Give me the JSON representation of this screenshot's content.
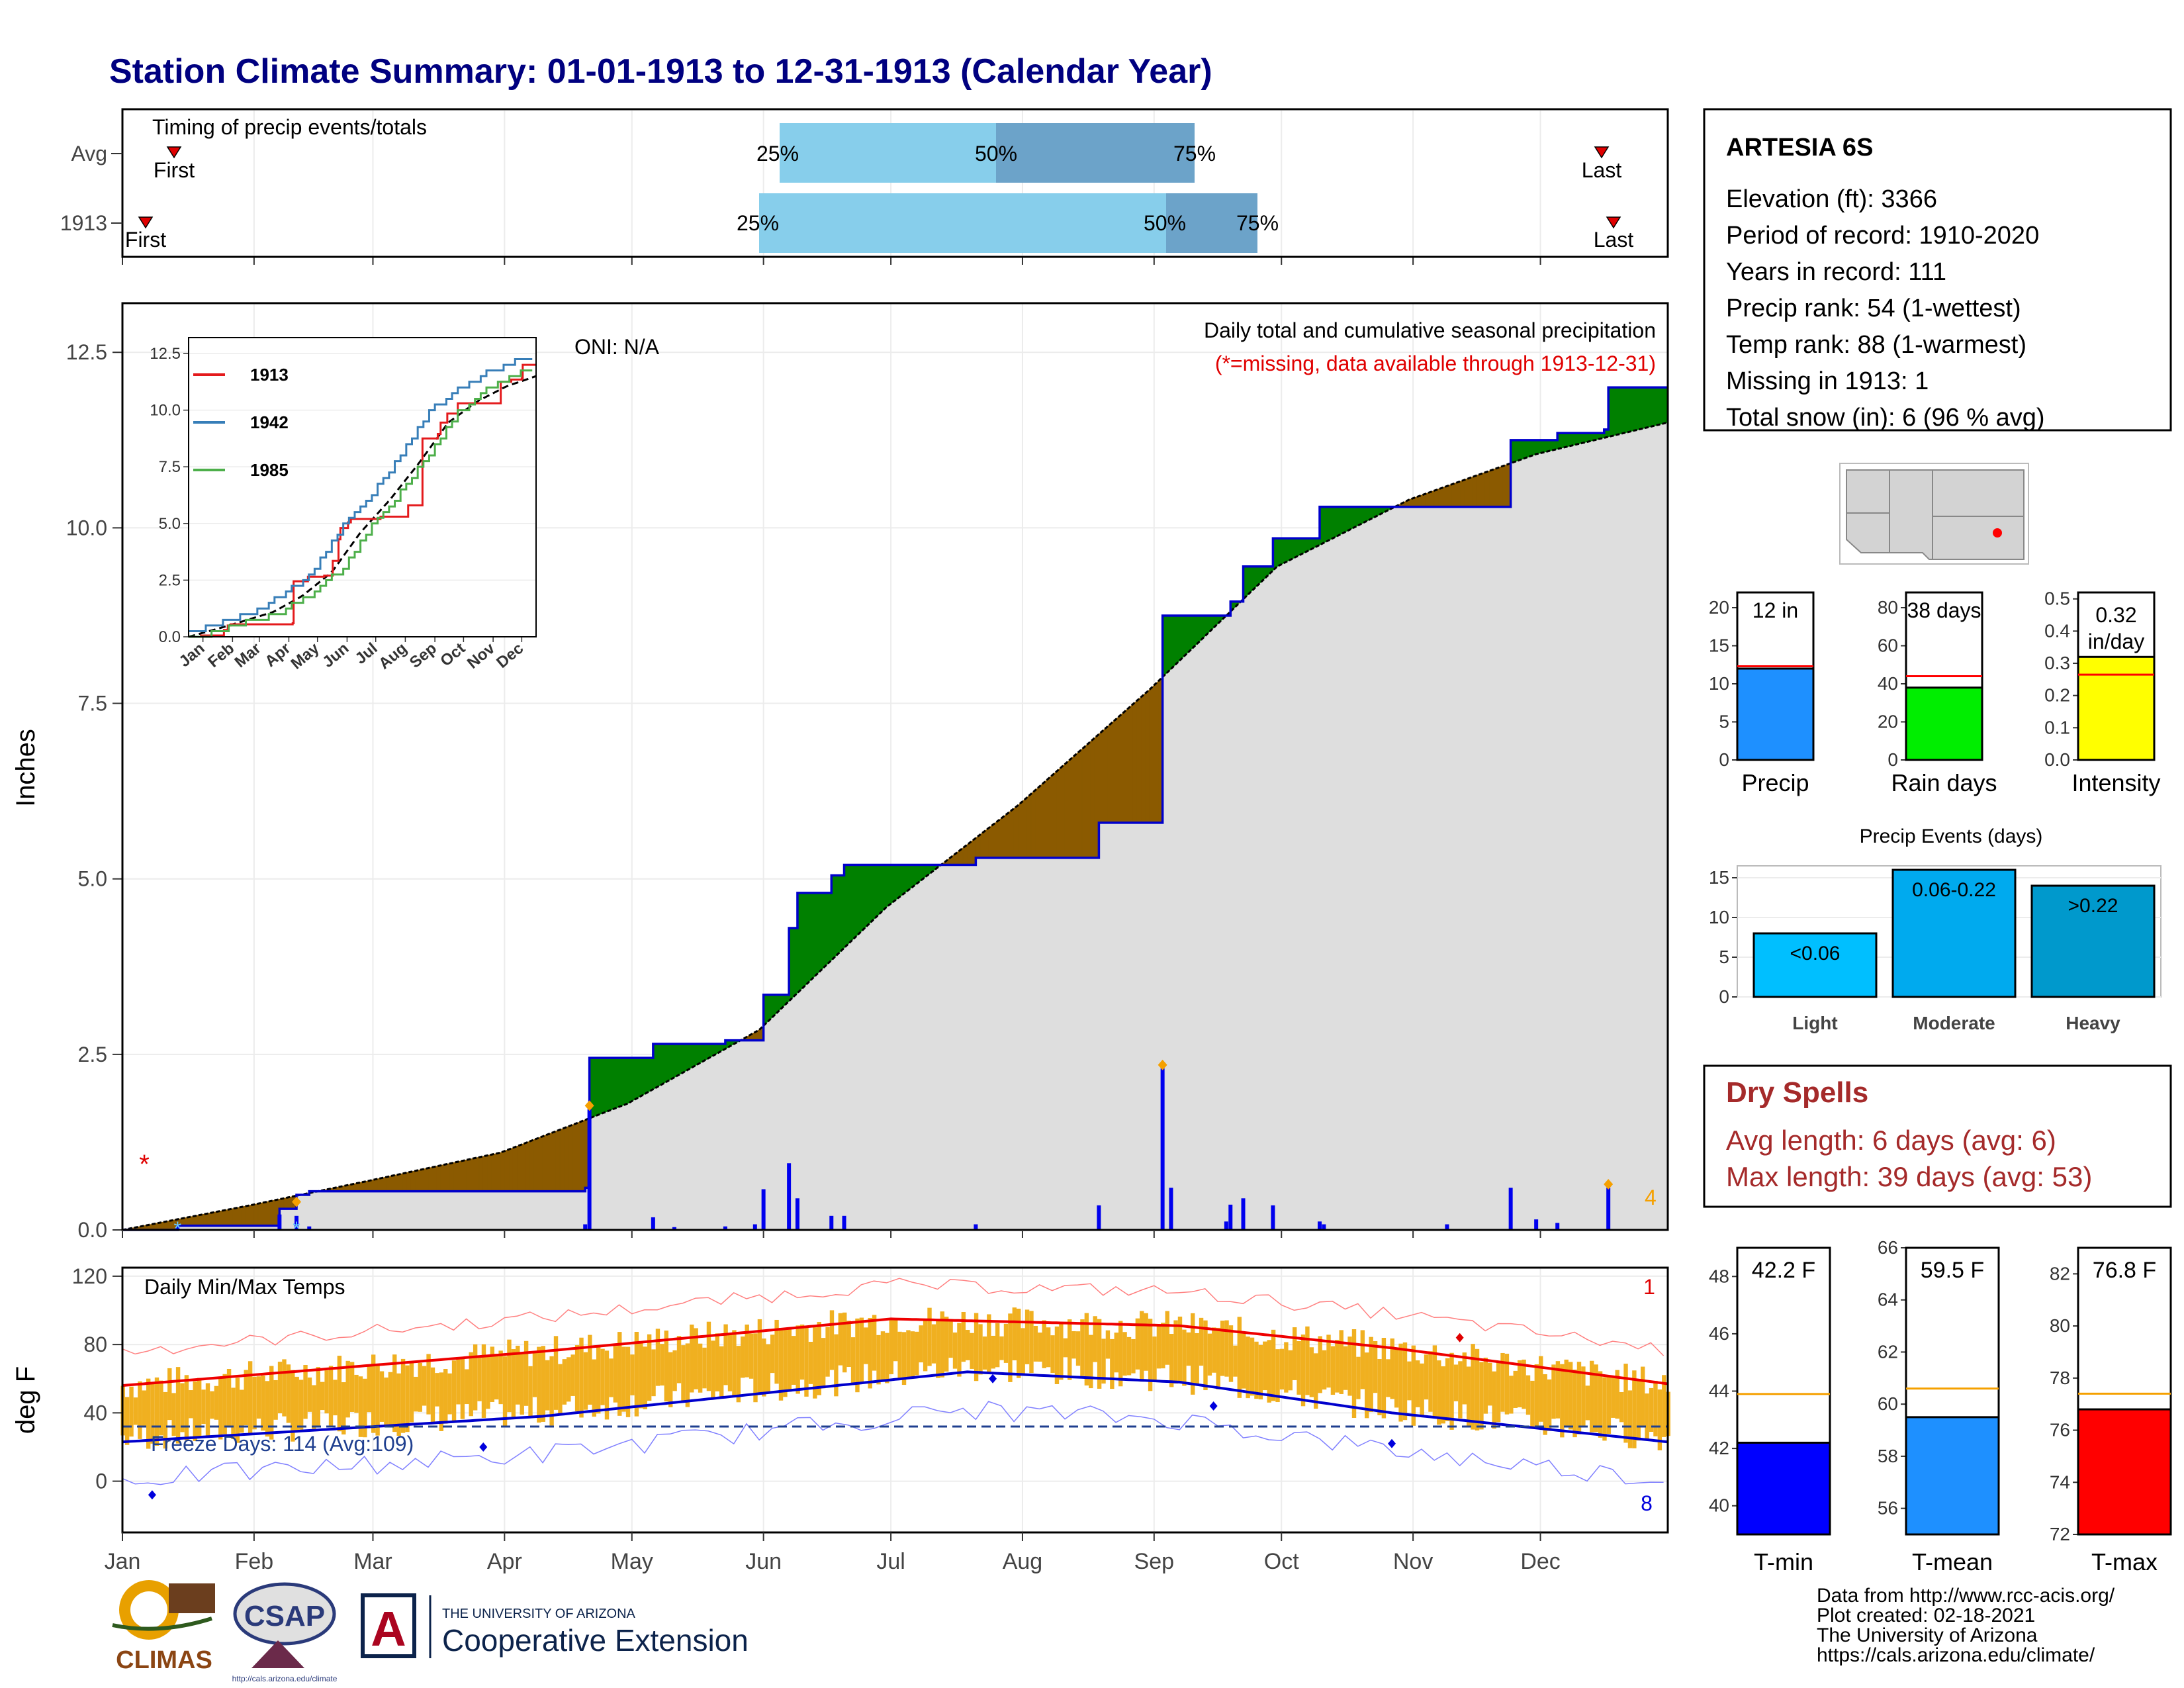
{
  "title": "Station Climate Summary: 01-01-1913 to 12-31-1913 (Calendar Year)",
  "months": [
    "Jan",
    "Feb",
    "Mar",
    "Apr",
    "May",
    "Jun",
    "Jul",
    "Aug",
    "Sep",
    "Oct",
    "Nov",
    "Dec"
  ],
  "timing_panel": {
    "label": "Timing of precip events/totals",
    "row_labels": [
      "Avg",
      "1913"
    ],
    "first_label": "First",
    "last_label": "Last",
    "pct_labels": [
      "25%",
      "50%",
      "75%"
    ],
    "colors": {
      "light": "#87ceeb",
      "dark": "#6ca3c9",
      "marker": "#e00000"
    }
  },
  "precip_panel": {
    "ylabel": "Inches",
    "yticks": [
      "0.0",
      "2.5",
      "5.0",
      "7.5",
      "10.0",
      "12.5"
    ],
    "ylim": [
      0,
      13.2
    ],
    "oni": "ONI: N/A",
    "header": "Daily total and cumulative seasonal precipitation",
    "missing_note": "(*=missing, data available through 1913-12-31)",
    "count_label": "4",
    "missing_marker": "*",
    "colors": {
      "above": "#008000",
      "below": "#8b5a00",
      "cum": "#0000cc",
      "avg_fill": "#dedede",
      "bars": "#0000ee"
    }
  },
  "inset": {
    "yticks": [
      "0.0",
      "2.5",
      "5.0",
      "7.5",
      "10.0",
      "12.5"
    ],
    "xticks": [
      "Jan",
      "Feb",
      "Mar",
      "Apr",
      "May",
      "Jun",
      "Jul",
      "Aug",
      "Sep",
      "Oct",
      "Nov",
      "Dec"
    ],
    "legend": [
      {
        "name": "1913",
        "color": "#e41a1c"
      },
      {
        "name": "1942",
        "color": "#377eb8"
      },
      {
        "name": "1985",
        "color": "#4daf4a"
      }
    ]
  },
  "temp_panel": {
    "ylabel": "deg F",
    "title": "Daily Min/Max Temps",
    "yticks": [
      "0",
      "40",
      "80",
      "120"
    ],
    "freeze_label": "Freeze Days: 114 (Avg:109)",
    "record_high_count": "1",
    "record_low_count": "8",
    "colors": {
      "bars": "#f0b020",
      "avg_max": "#ee0000",
      "avg_min": "#0000cc",
      "rec_max": "#ff8080",
      "rec_min": "#8080ff",
      "freeze": "#1f3f8f"
    }
  },
  "station": {
    "name": "ARTESIA 6S",
    "lines": [
      "Elevation (ft): 3366",
      "Period of record: 1910-2020",
      "Years in record: 111",
      "Precip rank: 54 (1-wettest)",
      "Temp rank: 88 (1-warmest)",
      "Missing in 1913: 1",
      "Total snow (in): 6 (96 % avg)"
    ]
  },
  "mini_bars": [
    {
      "label": "Precip",
      "value_text": "12 in",
      "value": 12,
      "avg": 12.3,
      "ymax": 22,
      "ticks": [
        "0",
        "5",
        "10",
        "15",
        "20"
      ],
      "tick_vals": [
        0,
        5,
        10,
        15,
        20
      ],
      "color": "#1e90ff"
    },
    {
      "label": "Rain days",
      "value_text": "38 days",
      "value": 38,
      "avg": 44,
      "ymax": 88,
      "ticks": [
        "0",
        "20",
        "40",
        "60",
        "80"
      ],
      "tick_vals": [
        0,
        20,
        40,
        60,
        80
      ],
      "color": "#00ee00"
    },
    {
      "label": "Intensity",
      "value_text": "0.32 in/day",
      "value": 0.32,
      "avg": 0.265,
      "ymax": 0.52,
      "ticks": [
        "0.0",
        "0.1",
        "0.2",
        "0.3",
        "0.4",
        "0.5"
      ],
      "tick_vals": [
        0,
        0.1,
        0.2,
        0.3,
        0.4,
        0.5
      ],
      "color": "#ffff00"
    }
  ],
  "events": {
    "title": "Precip Events (days)",
    "yticks": [
      "0",
      "5",
      "10",
      "15"
    ],
    "bars": [
      {
        "label": "Light",
        "range": "<0.06",
        "value": 8,
        "color": "#00bfff"
      },
      {
        "label": "Moderate",
        "range": "0.06-0.22",
        "value": 16,
        "color": "#00aaee"
      },
      {
        "label": "Heavy",
        "range": ">0.22",
        "value": 14,
        "color": "#0099cc"
      }
    ]
  },
  "dry_spells": {
    "title": "Dry Spells",
    "avg_line": "Avg length: 6 days (avg: 6)",
    "max_line": "Max length: 39 days (avg: 53)",
    "color": "#a52a2a"
  },
  "temp_bars": [
    {
      "label": "T-min",
      "value_text": "42.2 F",
      "value": 42.2,
      "avg": 43.9,
      "ylim": [
        39,
        49
      ],
      "ticks": [
        "40",
        "42",
        "44",
        "46",
        "48"
      ],
      "tick_vals": [
        40,
        42,
        44,
        46,
        48
      ],
      "color": "#0000ff"
    },
    {
      "label": "T-mean",
      "value_text": "59.5 F",
      "value": 59.5,
      "avg": 60.6,
      "ylim": [
        55,
        66
      ],
      "ticks": [
        "56",
        "58",
        "60",
        "62",
        "64",
        "66"
      ],
      "tick_vals": [
        56,
        58,
        60,
        62,
        64,
        66
      ],
      "color": "#1e90ff"
    },
    {
      "label": "T-max",
      "value_text": "76.8 F",
      "value": 76.8,
      "avg": 77.4,
      "ylim": [
        72,
        83
      ],
      "ticks": [
        "72",
        "74",
        "76",
        "78",
        "80",
        "82"
      ],
      "tick_vals": [
        72,
        74,
        76,
        78,
        80,
        82
      ],
      "color": "#ff0000"
    }
  ],
  "footer": {
    "lines": [
      "Data from http://www.rcc-acis.org/",
      "Plot created: 02-18-2021",
      "The University of Arizona",
      "https://cals.arizona.edu/climate/"
    ],
    "climas": "CLIMAS",
    "csap": "CSAP",
    "csap_url": "http://cals.arizona.edu/climate",
    "ua_small": "THE UNIVERSITY OF ARIZONA",
    "ua_big": "Cooperative Extension"
  },
  "chart_data": {
    "type": "area",
    "title": "Station Climate Summary: 01-01-1913 to 12-31-1913 (Calendar Year)",
    "ylabel": "Inches",
    "ylim": [
      0,
      13.2
    ],
    "cumulative_1913": [
      {
        "day": 1,
        "in": 0.0
      },
      {
        "day": 14,
        "in": 0.06
      },
      {
        "day": 38,
        "in": 0.3
      },
      {
        "day": 42,
        "in": 0.5
      },
      {
        "day": 45,
        "in": 0.55
      },
      {
        "day": 110,
        "in": 0.6
      },
      {
        "day": 111,
        "in": 2.45
      },
      {
        "day": 126,
        "in": 2.65
      },
      {
        "day": 143,
        "in": 2.7
      },
      {
        "day": 152,
        "in": 3.35
      },
      {
        "day": 158,
        "in": 4.3
      },
      {
        "day": 160,
        "in": 4.8
      },
      {
        "day": 168,
        "in": 5.05
      },
      {
        "day": 171,
        "in": 5.2
      },
      {
        "day": 202,
        "in": 5.3
      },
      {
        "day": 231,
        "in": 5.8
      },
      {
        "day": 245,
        "in": 5.8
      },
      {
        "day": 246,
        "in": 8.75
      },
      {
        "day": 261,
        "in": 8.75
      },
      {
        "day": 262,
        "in": 8.95
      },
      {
        "day": 265,
        "in": 9.45
      },
      {
        "day": 272,
        "in": 9.85
      },
      {
        "day": 283,
        "in": 10.3
      },
      {
        "day": 290,
        "in": 10.3
      },
      {
        "day": 305,
        "in": 10.3
      },
      {
        "day": 328,
        "in": 11.25
      },
      {
        "day": 339,
        "in": 11.35
      },
      {
        "day": 350,
        "in": 11.4
      },
      {
        "day": 351,
        "in": 12.0
      },
      {
        "day": 365,
        "in": 12.0
      }
    ],
    "average_cumulative": [
      {
        "day": 1,
        "in": 0.0
      },
      {
        "day": 31,
        "in": 0.35
      },
      {
        "day": 59,
        "in": 0.7
      },
      {
        "day": 90,
        "in": 1.1
      },
      {
        "day": 120,
        "in": 1.8
      },
      {
        "day": 151,
        "in": 2.85
      },
      {
        "day": 181,
        "in": 4.6
      },
      {
        "day": 212,
        "in": 6.05
      },
      {
        "day": 243,
        "in": 7.7
      },
      {
        "day": 273,
        "in": 9.45
      },
      {
        "day": 304,
        "in": 10.4
      },
      {
        "day": 334,
        "in": 11.05
      },
      {
        "day": 365,
        "in": 11.5
      }
    ],
    "daily_precip": [
      {
        "day": 14,
        "in": 0.04
      },
      {
        "day": 38,
        "in": 0.22
      },
      {
        "day": 42,
        "in": 0.2
      },
      {
        "day": 45,
        "in": 0.05
      },
      {
        "day": 110,
        "in": 0.08
      },
      {
        "day": 111,
        "in": 1.72
      },
      {
        "day": 126,
        "in": 0.18
      },
      {
        "day": 131,
        "in": 0.04
      },
      {
        "day": 143,
        "in": 0.05
      },
      {
        "day": 150,
        "in": 0.08
      },
      {
        "day": 152,
        "in": 0.58
      },
      {
        "day": 158,
        "in": 0.95
      },
      {
        "day": 160,
        "in": 0.45
      },
      {
        "day": 168,
        "in": 0.2
      },
      {
        "day": 171,
        "in": 0.2
      },
      {
        "day": 202,
        "in": 0.08
      },
      {
        "day": 231,
        "in": 0.35
      },
      {
        "day": 246,
        "in": 2.3
      },
      {
        "day": 248,
        "in": 0.6
      },
      {
        "day": 261,
        "in": 0.12
      },
      {
        "day": 262,
        "in": 0.36
      },
      {
        "day": 265,
        "in": 0.45
      },
      {
        "day": 272,
        "in": 0.35
      },
      {
        "day": 283,
        "in": 0.12
      },
      {
        "day": 284,
        "in": 0.08
      },
      {
        "day": 313,
        "in": 0.08
      },
      {
        "day": 328,
        "in": 0.6
      },
      {
        "day": 334,
        "in": 0.15
      },
      {
        "day": 339,
        "in": 0.1
      },
      {
        "day": 351,
        "in": 0.6
      }
    ],
    "temperature_normals": {
      "avg_max": [
        {
          "day": 1,
          "f": 56
        },
        {
          "day": 100,
          "f": 76
        },
        {
          "day": 182,
          "f": 95
        },
        {
          "day": 250,
          "f": 91
        },
        {
          "day": 300,
          "f": 78
        },
        {
          "day": 365,
          "f": 57
        }
      ],
      "avg_min": [
        {
          "day": 1,
          "f": 23
        },
        {
          "day": 100,
          "f": 38
        },
        {
          "day": 200,
          "f": 64
        },
        {
          "day": 250,
          "f": 58
        },
        {
          "day": 300,
          "f": 40
        },
        {
          "day": 365,
          "f": 23
        }
      ]
    }
  }
}
